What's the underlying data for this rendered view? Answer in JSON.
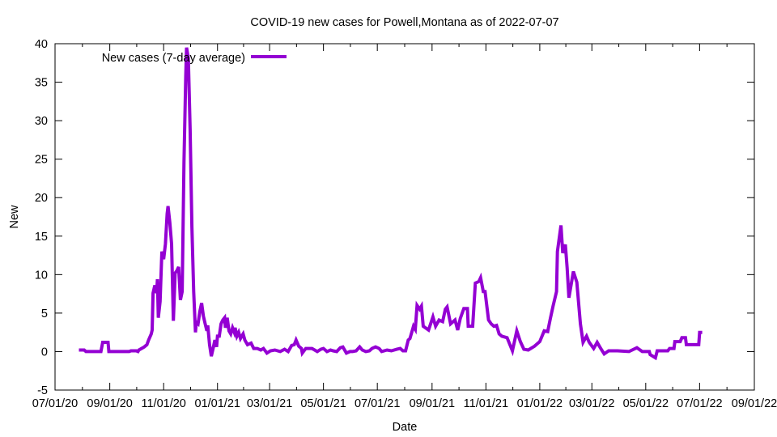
{
  "chart_data": {
    "type": "line",
    "title": "COVID-19 new cases for Powell,Montana as of 2022-07-07",
    "xlabel": "Date",
    "ylabel": "New",
    "x_unit": "days since 2020-07-01",
    "xlim": [
      0,
      792
    ],
    "ylim": [
      -5,
      40
    ],
    "yticks": [
      -5,
      0,
      5,
      10,
      15,
      20,
      25,
      30,
      35,
      40
    ],
    "xticks": [
      {
        "day": 0,
        "label": "07/01/20"
      },
      {
        "day": 62,
        "label": "09/01/20"
      },
      {
        "day": 123,
        "label": "11/01/20"
      },
      {
        "day": 184,
        "label": "01/01/21"
      },
      {
        "day": 243,
        "label": "03/01/21"
      },
      {
        "day": 304,
        "label": "05/01/21"
      },
      {
        "day": 365,
        "label": "07/01/21"
      },
      {
        "day": 427,
        "label": "09/01/21"
      },
      {
        "day": 488,
        "label": "11/01/21"
      },
      {
        "day": 549,
        "label": "01/01/22"
      },
      {
        "day": 608,
        "label": "03/01/22"
      },
      {
        "day": 669,
        "label": "05/01/22"
      },
      {
        "day": 730,
        "label": "07/01/22"
      },
      {
        "day": 792,
        "label": "09/01/22"
      }
    ],
    "grid": false,
    "legend_placement": "top-left",
    "series": [
      {
        "name": "New cases (7-day average)",
        "color": "#9400d3",
        "points": [
          [
            27,
            0.2
          ],
          [
            33,
            0.2
          ],
          [
            35,
            0
          ],
          [
            52,
            0
          ],
          [
            54,
            1.2
          ],
          [
            60,
            1.2
          ],
          [
            61,
            0
          ],
          [
            84,
            0
          ],
          [
            86,
            0.1
          ],
          [
            92,
            0.1
          ],
          [
            94,
            0
          ],
          [
            95,
            0.2
          ],
          [
            98,
            0.4
          ],
          [
            101,
            0.6
          ],
          [
            104,
            0.9
          ],
          [
            106,
            1.5
          ],
          [
            109,
            2.3
          ],
          [
            110,
            2.8
          ],
          [
            111,
            7.6
          ],
          [
            113,
            8.6
          ],
          [
            115,
            7.6
          ],
          [
            116,
            9.4
          ],
          [
            117,
            4.4
          ],
          [
            119,
            6.5
          ],
          [
            121,
            13
          ],
          [
            123,
            12
          ],
          [
            125,
            14
          ],
          [
            127,
            17.9
          ],
          [
            128,
            18.9
          ],
          [
            130,
            16.8
          ],
          [
            132,
            14
          ],
          [
            134,
            4
          ],
          [
            136,
            10.2
          ],
          [
            138,
            10.5
          ],
          [
            140,
            11
          ],
          [
            142,
            6.7
          ],
          [
            144,
            7.8
          ],
          [
            146,
            24.6
          ],
          [
            148,
            35.8
          ],
          [
            149,
            39.5
          ],
          [
            151,
            38.1
          ],
          [
            153,
            28.9
          ],
          [
            155,
            16.2
          ],
          [
            157,
            7.8
          ],
          [
            159,
            2.5
          ],
          [
            160,
            3.8
          ],
          [
            162,
            3.6
          ],
          [
            164,
            5.2
          ],
          [
            166,
            6.3
          ],
          [
            168,
            4.6
          ],
          [
            170,
            3.6
          ],
          [
            172,
            2.7
          ],
          [
            173,
            3.4
          ],
          [
            175,
            0.9
          ],
          [
            177,
            -0.6
          ],
          [
            179,
            0.4
          ],
          [
            181,
            1.5
          ],
          [
            183,
            0.6
          ],
          [
            184,
            2
          ],
          [
            186,
            2
          ],
          [
            188,
            3.6
          ],
          [
            190,
            4.1
          ],
          [
            192,
            4.4
          ],
          [
            193,
            3.1
          ],
          [
            195,
            4.4
          ],
          [
            197,
            2.7
          ],
          [
            199,
            2.3
          ],
          [
            201,
            3.1
          ],
          [
            203,
            2.5
          ],
          [
            204,
            3.1
          ],
          [
            206,
            2
          ],
          [
            208,
            2.5
          ],
          [
            210,
            1.7
          ],
          [
            213,
            2.3
          ],
          [
            215,
            1.5
          ],
          [
            218,
            0.9
          ],
          [
            222,
            1.1
          ],
          [
            225,
            0.4
          ],
          [
            229,
            0.4
          ],
          [
            233,
            0.2
          ],
          [
            236,
            0.4
          ],
          [
            240,
            -0.2
          ],
          [
            244,
            0.1
          ],
          [
            249,
            0.2
          ],
          [
            255,
            0
          ],
          [
            260,
            0.3
          ],
          [
            264,
            0
          ],
          [
            268,
            0.8
          ],
          [
            271,
            0.9
          ],
          [
            273,
            1.5
          ],
          [
            276,
            0.7
          ],
          [
            279,
            0.4
          ],
          [
            280,
            -0.2
          ],
          [
            284,
            0.4
          ],
          [
            291,
            0.4
          ],
          [
            297,
            0
          ],
          [
            301,
            0.3
          ],
          [
            304,
            0.4
          ],
          [
            308,
            0
          ],
          [
            312,
            0.2
          ],
          [
            315,
            0.1
          ],
          [
            319,
            0
          ],
          [
            323,
            0.5
          ],
          [
            326,
            0.6
          ],
          [
            330,
            -0.2
          ],
          [
            334,
            0
          ],
          [
            337,
            0
          ],
          [
            341,
            0.1
          ],
          [
            345,
            0.6
          ],
          [
            348,
            0.2
          ],
          [
            352,
            0
          ],
          [
            356,
            0.1
          ],
          [
            359,
            0.4
          ],
          [
            363,
            0.6
          ],
          [
            367,
            0.4
          ],
          [
            370,
            0
          ],
          [
            376,
            0.2
          ],
          [
            381,
            0.1
          ],
          [
            387,
            0.3
          ],
          [
            391,
            0.4
          ],
          [
            394,
            0.1
          ],
          [
            397,
            0.1
          ],
          [
            400,
            1.5
          ],
          [
            402,
            1.7
          ],
          [
            406,
            3.3
          ],
          [
            408,
            2.9
          ],
          [
            410,
            6
          ],
          [
            413,
            5.5
          ],
          [
            415,
            5.9
          ],
          [
            417,
            3.3
          ],
          [
            423,
            2.8
          ],
          [
            428,
            4.5
          ],
          [
            431,
            3.3
          ],
          [
            435,
            4.1
          ],
          [
            439,
            3.9
          ],
          [
            442,
            5.5
          ],
          [
            444,
            5.8
          ],
          [
            448,
            3.6
          ],
          [
            453,
            4.1
          ],
          [
            456,
            2.8
          ],
          [
            459,
            4.3
          ],
          [
            463,
            5.6
          ],
          [
            467,
            5.6
          ],
          [
            468,
            3.3
          ],
          [
            473,
            3.3
          ],
          [
            476,
            8.9
          ],
          [
            480,
            9.1
          ],
          [
            482,
            9.6
          ],
          [
            485,
            7.8
          ],
          [
            487,
            7.8
          ],
          [
            491,
            4.1
          ],
          [
            494,
            3.6
          ],
          [
            497,
            3.3
          ],
          [
            500,
            3.4
          ],
          [
            503,
            2.3
          ],
          [
            506,
            2
          ],
          [
            512,
            1.8
          ],
          [
            518,
            0.1
          ],
          [
            523,
            2.7
          ],
          [
            527,
            1.3
          ],
          [
            531,
            0.3
          ],
          [
            536,
            0.2
          ],
          [
            543,
            0.7
          ],
          [
            549,
            1.3
          ],
          [
            554,
            2.7
          ],
          [
            558,
            2.6
          ],
          [
            561,
            4.3
          ],
          [
            564,
            5.9
          ],
          [
            568,
            7.8
          ],
          [
            569,
            13
          ],
          [
            573,
            16.4
          ],
          [
            575,
            12.8
          ],
          [
            578,
            13.9
          ],
          [
            580,
            10.9
          ],
          [
            582,
            7
          ],
          [
            587,
            10.4
          ],
          [
            591,
            9
          ],
          [
            595,
            3.6
          ],
          [
            598,
            1.2
          ],
          [
            602,
            2
          ],
          [
            605,
            1.2
          ],
          [
            610,
            0.4
          ],
          [
            614,
            1.2
          ],
          [
            618,
            0.4
          ],
          [
            622,
            -0.3
          ],
          [
            627,
            0.1
          ],
          [
            637,
            0.1
          ],
          [
            650,
            0
          ],
          [
            659,
            0.5
          ],
          [
            665,
            0
          ],
          [
            673,
            0
          ],
          [
            674,
            -0.4
          ],
          [
            680,
            -0.8
          ],
          [
            682,
            0.1
          ],
          [
            694,
            0.1
          ],
          [
            696,
            0.4
          ],
          [
            701,
            0.4
          ],
          [
            702,
            1.3
          ],
          [
            708,
            1.3
          ],
          [
            710,
            1.8
          ],
          [
            714,
            1.8
          ],
          [
            715,
            0.9
          ],
          [
            729,
            0.9
          ],
          [
            730,
            2.5
          ],
          [
            733,
            2.5
          ]
        ]
      }
    ]
  }
}
